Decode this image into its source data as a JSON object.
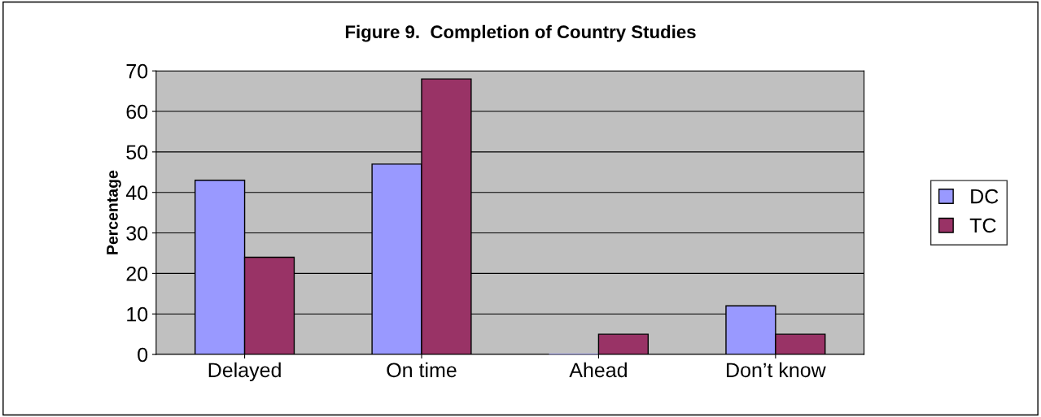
{
  "chart_data": {
    "type": "bar",
    "title": "Figure 9.  Completion of Country Studies",
    "ylabel": "Percentage",
    "categories": [
      "Delayed",
      "On time",
      "Ahead",
      "Don’t know"
    ],
    "series": [
      {
        "name": "DC",
        "color": "#9999ff",
        "values": [
          43,
          47,
          0,
          12
        ]
      },
      {
        "name": "TC",
        "color": "#993366",
        "values": [
          24,
          68,
          5,
          5
        ]
      }
    ],
    "ylim": [
      0,
      70
    ],
    "yticks": [
      0,
      10,
      20,
      30,
      40,
      50,
      60,
      70
    ],
    "grid": "y",
    "legend": "right"
  }
}
